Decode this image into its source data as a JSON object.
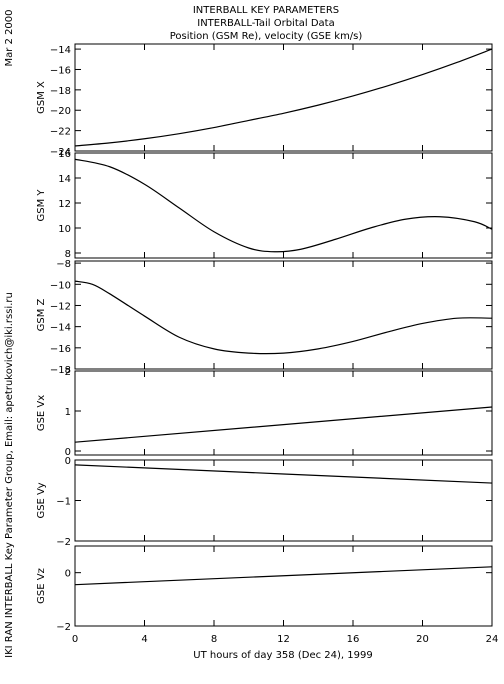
{
  "header": {
    "date": "Mar  2 2000",
    "title1": "INTERBALL KEY PARAMETERS",
    "title2": "INTERBALL-Tail Orbital Data",
    "title3": "Position (GSM Re), velocity (GSE km/s)"
  },
  "side_note": "IKI RAN INTERBALL Key Parameter Group, Email: apetrukovich@iki.rssi.ru",
  "colors": {
    "line": "#000000",
    "background": "#ffffff"
  },
  "chart_data": {
    "type": "line",
    "xlabel": "UT hours of day 358 (Dec 24), 1999",
    "xlim": [
      0,
      24
    ],
    "xticks": [
      0,
      4,
      8,
      12,
      16,
      20,
      24
    ],
    "grid": false,
    "panels": [
      {
        "ylabel": "GSM X",
        "ylim": [
          -24,
          -13.5
        ],
        "yticks": [
          -24,
          -22,
          -20,
          -18,
          -16,
          -14
        ],
        "x": [
          0,
          2,
          4,
          6,
          8,
          10,
          12,
          14,
          16,
          18,
          20,
          22,
          24
        ],
        "y": [
          -23.5,
          -23.2,
          -22.8,
          -22.3,
          -21.7,
          -21.0,
          -20.3,
          -19.5,
          -18.6,
          -17.6,
          -16.5,
          -15.3,
          -14.0
        ]
      },
      {
        "ylabel": "GSM Y",
        "ylim": [
          7.6,
          16
        ],
        "yticks": [
          8,
          10,
          12,
          14,
          16
        ],
        "x": [
          0,
          2,
          4,
          6,
          8,
          10,
          11.5,
          13,
          15,
          17,
          19,
          21,
          23,
          24
        ],
        "y": [
          15.5,
          14.9,
          13.5,
          11.6,
          9.7,
          8.4,
          8.1,
          8.3,
          9.1,
          10.0,
          10.7,
          10.9,
          10.5,
          9.9
        ]
      },
      {
        "ylabel": "GSM Z",
        "ylim": [
          -18,
          -7.8
        ],
        "yticks": [
          -18,
          -16,
          -14,
          -12,
          -10,
          -8
        ],
        "x": [
          0,
          1,
          2,
          4,
          6,
          8,
          10,
          12,
          14,
          16,
          18,
          20,
          22,
          24
        ],
        "y": [
          -9.7,
          -10.0,
          -10.9,
          -13.0,
          -15.0,
          -16.1,
          -16.5,
          -16.5,
          -16.1,
          -15.4,
          -14.5,
          -13.7,
          -13.2,
          -13.2
        ]
      },
      {
        "ylabel": "GSE Vx",
        "ylim": [
          -0.1,
          2
        ],
        "yticks": [
          0,
          1,
          2
        ],
        "x": [
          0,
          24
        ],
        "y": [
          0.22,
          1.1
        ]
      },
      {
        "ylabel": "GSE Vy",
        "ylim": [
          -2,
          0
        ],
        "yticks": [
          -2,
          -1,
          0
        ],
        "x": [
          0,
          24
        ],
        "y": [
          -0.12,
          -0.57
        ]
      },
      {
        "ylabel": "GSE Vz",
        "ylim": [
          -2,
          1
        ],
        "yticks": [
          -2,
          0
        ],
        "x": [
          0,
          24
        ],
        "y": [
          -0.45,
          0.22
        ]
      }
    ]
  }
}
